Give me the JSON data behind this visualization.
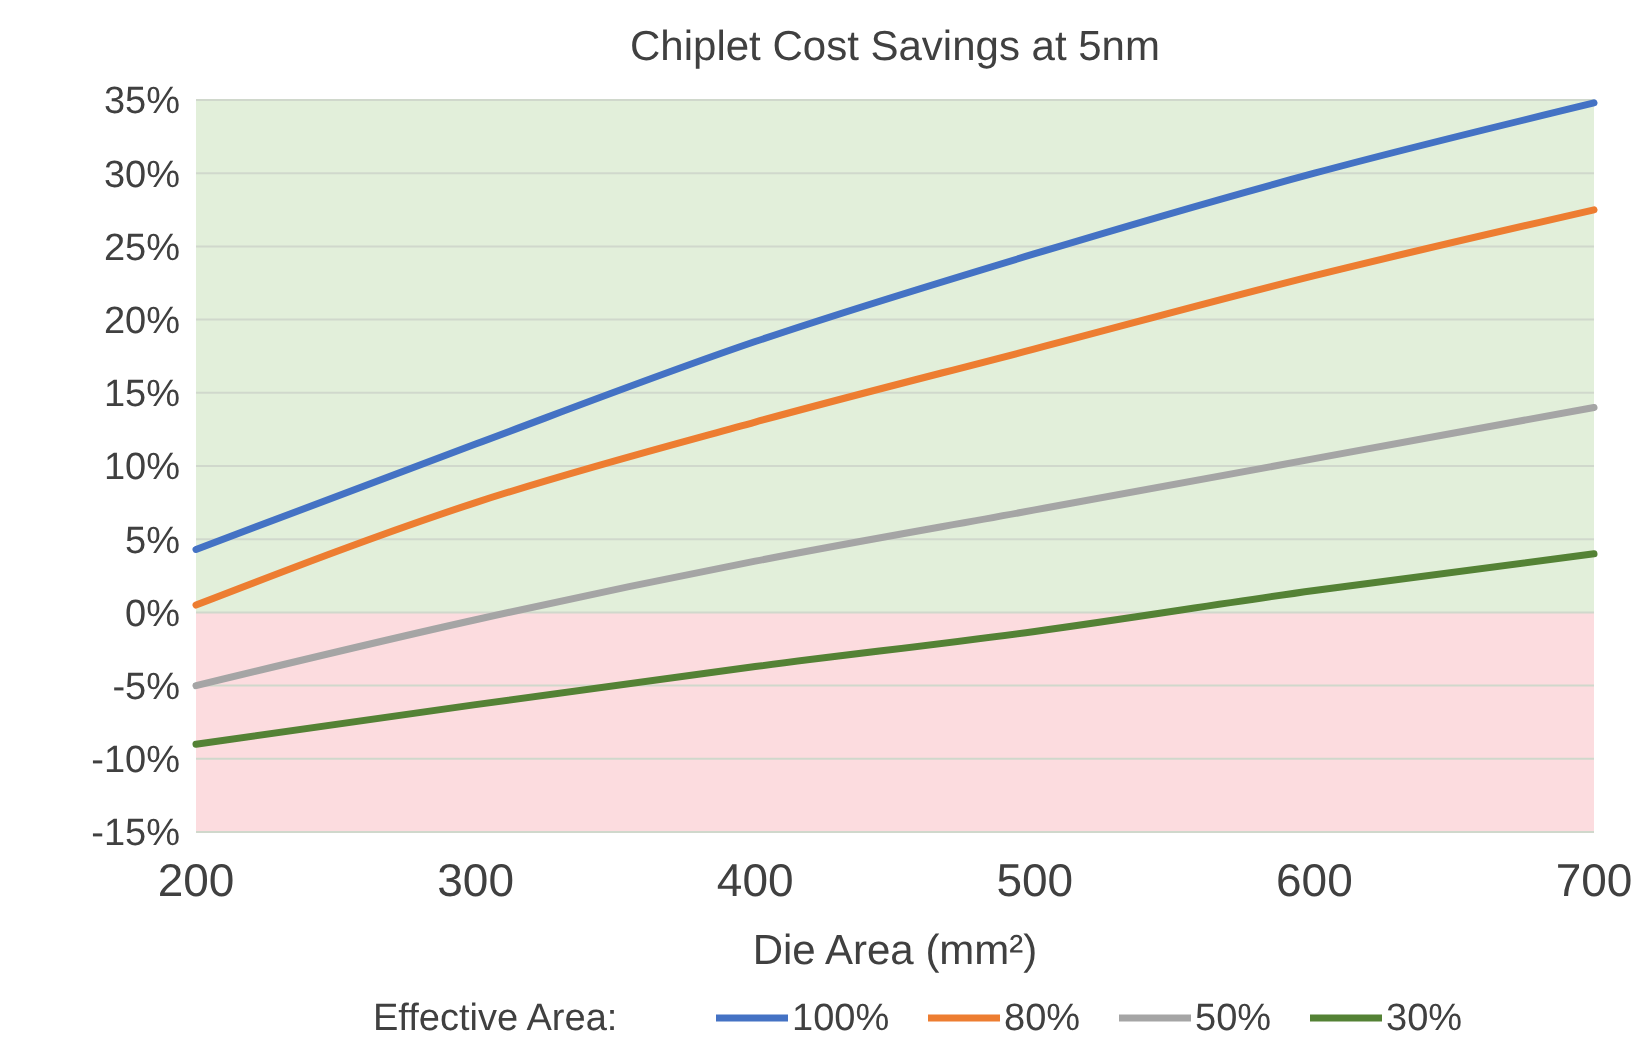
{
  "chart_data": {
    "type": "line",
    "title": "Chiplet Cost Savings at 5nm",
    "xlabel": "Die Area (mm²)",
    "legend_title": "Effective Area:",
    "x": [
      200,
      300,
      400,
      500,
      600,
      700
    ],
    "series": [
      {
        "name": "100%",
        "color": "#4472c4",
        "values": [
          4.3,
          11.5,
          18.5,
          24.5,
          30,
          34.8
        ]
      },
      {
        "name": "80%",
        "color": "#ed7d31",
        "values": [
          0.5,
          7.5,
          13,
          18,
          23,
          27.5
        ]
      },
      {
        "name": "50%",
        "color": "#a5a5a5",
        "values": [
          -5,
          -0.5,
          3.5,
          7,
          10.5,
          14
        ]
      },
      {
        "name": "30%",
        "color": "#548235",
        "values": [
          -9,
          -6.3,
          -3.7,
          -1.3,
          1.5,
          4
        ]
      }
    ],
    "xlim": [
      200,
      700
    ],
    "xticks": [
      200,
      300,
      400,
      500,
      600,
      700
    ],
    "ylim": [
      -15,
      35
    ],
    "yticks": [
      {
        "value": -15,
        "label": "-15%"
      },
      {
        "value": -10,
        "label": "-10%"
      },
      {
        "value": -5,
        "label": "-5%"
      },
      {
        "value": 0,
        "label": "0%"
      },
      {
        "value": 5,
        "label": "5%"
      },
      {
        "value": 10,
        "label": "10%"
      },
      {
        "value": 15,
        "label": "15%"
      },
      {
        "value": 20,
        "label": "20%"
      },
      {
        "value": 25,
        "label": "25%"
      },
      {
        "value": 30,
        "label": "30%"
      },
      {
        "value": 35,
        "label": "35%"
      }
    ],
    "bands": [
      {
        "axis": "y",
        "from": 0,
        "to": 35,
        "color": "#e2efda"
      },
      {
        "axis": "y",
        "from": -15,
        "to": 0,
        "color": "#fcdcdf"
      }
    ],
    "grid": "y",
    "legend": "bottom",
    "marker": "none",
    "line_style": "solid"
  }
}
